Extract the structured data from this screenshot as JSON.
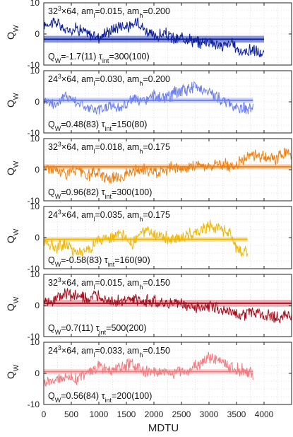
{
  "chart_data": {
    "type": "line",
    "xlabel": "MDTU",
    "x_ticks": [
      "0",
      "500",
      "1000",
      "1500",
      "2000",
      "2500",
      "3000",
      "3500",
      "4000"
    ],
    "xlim": [
      0,
      4500
    ],
    "grid": true,
    "panels": [
      {
        "ylabel": "Q_W",
        "y_ticks": [
          "-10",
          "0",
          "10"
        ],
        "ylim": [
          -10,
          10
        ],
        "color": "#0b1f9e",
        "band_color": "#2b3fbf",
        "ensemble": "32³×64, am_l=0.015, am_h=0.200",
        "ens_parts": [
          "32",
          "3",
          "×64, am",
          "l",
          "=0.015, am",
          "h",
          "=0.200"
        ],
        "stat_parts": [
          "Q",
          "W",
          "=-1.7(11)",
          "τ",
          "int",
          "=300(100)"
        ],
        "mean": -1.7,
        "err": 1.1,
        "length": 4000,
        "points": [
          [
            0,
            3
          ],
          [
            200,
            4
          ],
          [
            400,
            1
          ],
          [
            600,
            2
          ],
          [
            800,
            0
          ],
          [
            1000,
            -1
          ],
          [
            1200,
            1
          ],
          [
            1400,
            3
          ],
          [
            1600,
            2
          ],
          [
            1700,
            5
          ],
          [
            1800,
            2
          ],
          [
            2000,
            -1
          ],
          [
            2200,
            0
          ],
          [
            2400,
            -2
          ],
          [
            2600,
            -1
          ],
          [
            2800,
            -3
          ],
          [
            3000,
            -2
          ],
          [
            3200,
            -4
          ],
          [
            3400,
            -3
          ],
          [
            3600,
            -6
          ],
          [
            3800,
            -5
          ],
          [
            4000,
            -7
          ]
        ]
      },
      {
        "ylabel": "Q_W",
        "y_ticks": [
          "-10",
          "0",
          "10"
        ],
        "ylim": [
          -10,
          10
        ],
        "color": "#6b7ef2",
        "band_color": "#a8b4f8",
        "ensemble": "24³×64, am_l=0.030, am_h=0.200",
        "ens_parts": [
          "24",
          "3",
          "×64, am",
          "l",
          "=0.030, am",
          "h",
          "=0.200"
        ],
        "stat_parts": [
          "Q",
          "W",
          "=0.48(83)",
          "τ",
          "int",
          "=150(80)"
        ],
        "mean": 0.48,
        "err": 0.83,
        "length": 3800,
        "points": [
          [
            0,
            1
          ],
          [
            200,
            -1
          ],
          [
            400,
            2
          ],
          [
            600,
            0
          ],
          [
            800,
            -2
          ],
          [
            1000,
            -3
          ],
          [
            1200,
            -1
          ],
          [
            1400,
            -2
          ],
          [
            1600,
            1
          ],
          [
            1800,
            0
          ],
          [
            2000,
            2
          ],
          [
            2200,
            1
          ],
          [
            2400,
            3
          ],
          [
            2600,
            4
          ],
          [
            2800,
            5
          ],
          [
            3000,
            3
          ],
          [
            3200,
            1
          ],
          [
            3400,
            -1
          ],
          [
            3600,
            -2
          ],
          [
            3800,
            -2
          ]
        ]
      },
      {
        "ylabel": "Q_W",
        "y_ticks": [
          "-10",
          "0",
          "10"
        ],
        "ylim": [
          -10,
          10
        ],
        "color": "#f07f12",
        "band_color": "#f7b479",
        "ensemble": "32³×64, am_l=0.018, am_h=0.175",
        "ens_parts": [
          "32",
          "3",
          "×64, am",
          "l",
          "=0.018, am",
          "h",
          "=0.175"
        ],
        "stat_parts": [
          "Q",
          "W",
          "=0.96(82)",
          "τ",
          "int",
          "=300(100)"
        ],
        "mean": 0.96,
        "err": 0.82,
        "length": 4500,
        "points": [
          [
            0,
            1
          ],
          [
            200,
            0
          ],
          [
            400,
            -1
          ],
          [
            600,
            0
          ],
          [
            800,
            -2
          ],
          [
            1000,
            -1
          ],
          [
            1200,
            -3
          ],
          [
            1400,
            -2
          ],
          [
            1600,
            -1
          ],
          [
            1800,
            0
          ],
          [
            2000,
            -1
          ],
          [
            2200,
            0
          ],
          [
            2400,
            1
          ],
          [
            2600,
            0
          ],
          [
            2800,
            2
          ],
          [
            3000,
            1
          ],
          [
            3200,
            2
          ],
          [
            3400,
            1
          ],
          [
            3600,
            3
          ],
          [
            3800,
            5
          ],
          [
            4000,
            4
          ],
          [
            4200,
            3
          ],
          [
            4400,
            6
          ],
          [
            4500,
            5
          ]
        ]
      },
      {
        "ylabel": "Q_W",
        "y_ticks": [
          "-10",
          "0",
          "10"
        ],
        "ylim": [
          -10,
          10
        ],
        "color": "#f2b705",
        "band_color": "#f7d66a",
        "ensemble": "24³×64, am_l=0.035, am_h=0.175",
        "ens_parts": [
          "24",
          "3",
          "×64, am",
          "l",
          "=0.035, am",
          "h",
          "=0.175"
        ],
        "stat_parts": [
          "Q",
          "W",
          "=-0.58(83)",
          "τ",
          "int",
          "=160(90)"
        ],
        "mean": -0.58,
        "err": 0.83,
        "length": 3700,
        "points": [
          [
            0,
            -1
          ],
          [
            200,
            -3
          ],
          [
            400,
            -2
          ],
          [
            600,
            -5
          ],
          [
            800,
            -4
          ],
          [
            1000,
            -1
          ],
          [
            1200,
            0
          ],
          [
            1400,
            1
          ],
          [
            1600,
            -2
          ],
          [
            1800,
            2
          ],
          [
            2000,
            1
          ],
          [
            2200,
            0
          ],
          [
            2400,
            -1
          ],
          [
            2600,
            1
          ],
          [
            2800,
            2
          ],
          [
            3000,
            4
          ],
          [
            3200,
            3
          ],
          [
            3400,
            1
          ],
          [
            3500,
            -4
          ],
          [
            3600,
            -5
          ],
          [
            3700,
            -4
          ]
        ]
      },
      {
        "ylabel": "Q_W",
        "y_ticks": [
          "-10",
          "0",
          "10"
        ],
        "ylim": [
          -10,
          10
        ],
        "color": "#a5101e",
        "band_color": "#d96b76",
        "ensemble": "32³×64, am_l=0.015, am_h=0.150",
        "ens_parts": [
          "32",
          "3",
          "×64, am",
          "l",
          "=0.015, am",
          "h",
          "=0.150"
        ],
        "stat_parts": [
          "Q",
          "W",
          "=0.7(11)",
          "τ",
          "int",
          "=500(200)"
        ],
        "mean": 0.7,
        "err": 1.1,
        "length": 4500,
        "points": [
          [
            0,
            1
          ],
          [
            200,
            2
          ],
          [
            400,
            4
          ],
          [
            600,
            3
          ],
          [
            800,
            2
          ],
          [
            1000,
            3
          ],
          [
            1200,
            2
          ],
          [
            1400,
            1
          ],
          [
            1600,
            2
          ],
          [
            1800,
            1
          ],
          [
            2000,
            2
          ],
          [
            2200,
            0
          ],
          [
            2400,
            1
          ],
          [
            2600,
            0
          ],
          [
            2800,
            -1
          ],
          [
            3000,
            0
          ],
          [
            3200,
            -1
          ],
          [
            3400,
            -2
          ],
          [
            3600,
            -3
          ],
          [
            3800,
            -2
          ],
          [
            4000,
            -3
          ],
          [
            4200,
            -4
          ],
          [
            4400,
            -3
          ],
          [
            4500,
            -4
          ]
        ]
      },
      {
        "ylabel": "Q_W",
        "y_ticks": [
          "-10",
          "0",
          "10"
        ],
        "ylim": [
          -10,
          10
        ],
        "color": "#f07c80",
        "band_color": "#f8b3b5",
        "ensemble": "24³×64, am_l=0.033, am_h=0.150",
        "ens_parts": [
          "24",
          "3",
          "×64, am",
          "l",
          "=0.033, am",
          "h",
          "=0.150"
        ],
        "stat_parts": [
          "Q",
          "W",
          "=0.56(84)",
          "τ",
          "int",
          "=200(100)"
        ],
        "mean": 0.56,
        "err": 0.84,
        "length": 3800,
        "points": [
          [
            0,
            -3
          ],
          [
            200,
            -2
          ],
          [
            400,
            -1
          ],
          [
            600,
            -2
          ],
          [
            800,
            1
          ],
          [
            1000,
            2
          ],
          [
            1200,
            1
          ],
          [
            1400,
            2
          ],
          [
            1600,
            3
          ],
          [
            1800,
            1
          ],
          [
            2000,
            0
          ],
          [
            2200,
            1
          ],
          [
            2400,
            0
          ],
          [
            2600,
            1
          ],
          [
            2800,
            3
          ],
          [
            3000,
            5
          ],
          [
            3200,
            4
          ],
          [
            3400,
            2
          ],
          [
            3600,
            1
          ],
          [
            3800,
            0
          ]
        ]
      }
    ]
  }
}
